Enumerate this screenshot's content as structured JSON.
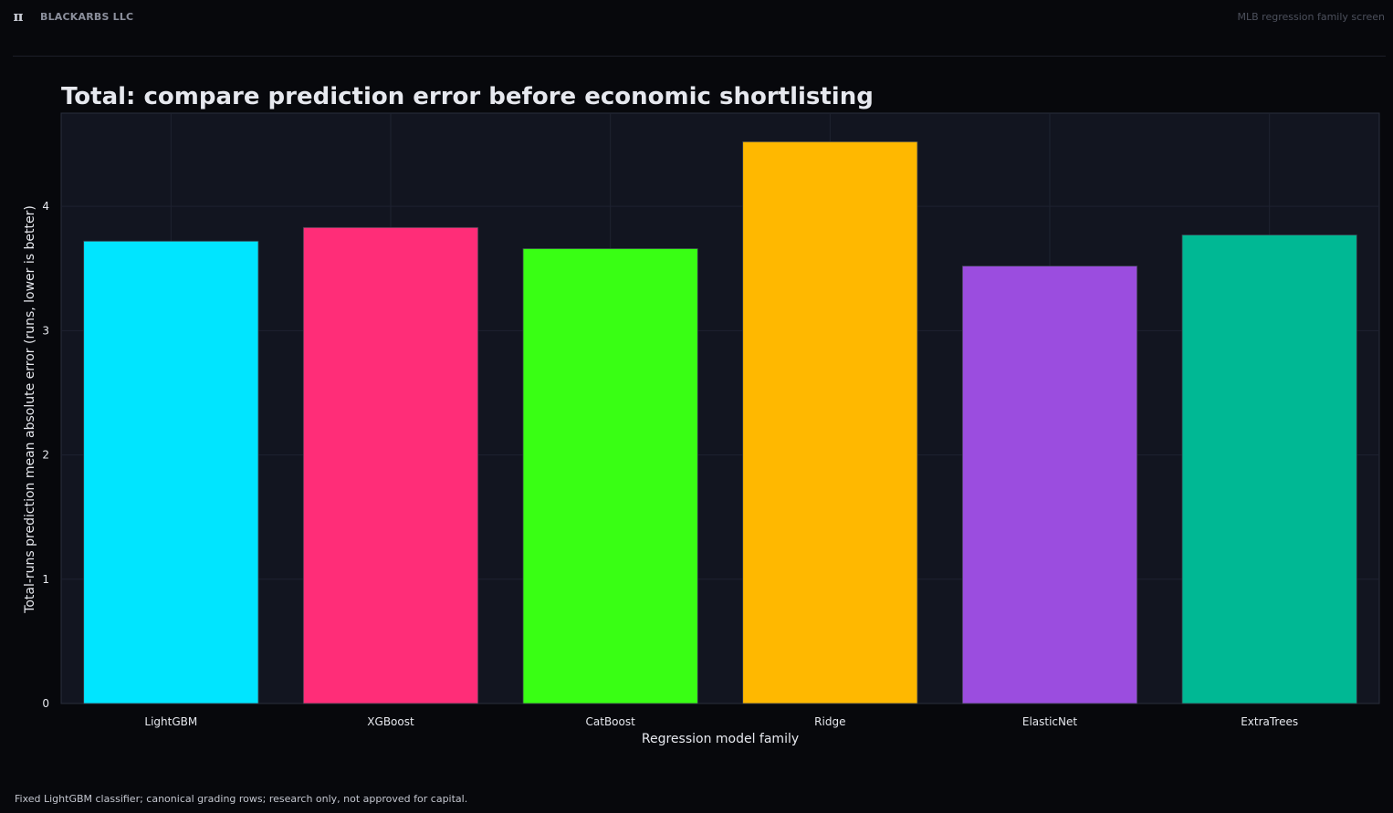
{
  "header": {
    "logo_glyph": "π",
    "company": "BLACKARBS LLC",
    "note": "MLB regression family screen"
  },
  "chart_data": {
    "type": "bar",
    "title": "Total: compare prediction error before economic shortlisting",
    "xlabel": "Regression model family",
    "ylabel": "Total-runs prediction mean absolute error (runs, lower is better)",
    "categories": [
      "LightGBM",
      "XGBoost",
      "CatBoost",
      "Ridge",
      "ElasticNet",
      "ExtraTrees"
    ],
    "values": [
      3.72,
      3.83,
      3.66,
      4.52,
      3.52,
      3.77
    ],
    "colors": [
      "#00e5ff",
      "#ff2d78",
      "#39ff14",
      "#ffb800",
      "#9b4ddf",
      "#00b894"
    ],
    "ylim": [
      0,
      4.75
    ],
    "yticks": [
      0,
      1,
      2,
      3,
      4
    ],
    "grid": true,
    "legend": "none"
  },
  "footer": {
    "note": "Fixed LightGBM classifier; canonical grading rows; research only, not approved for capital."
  }
}
